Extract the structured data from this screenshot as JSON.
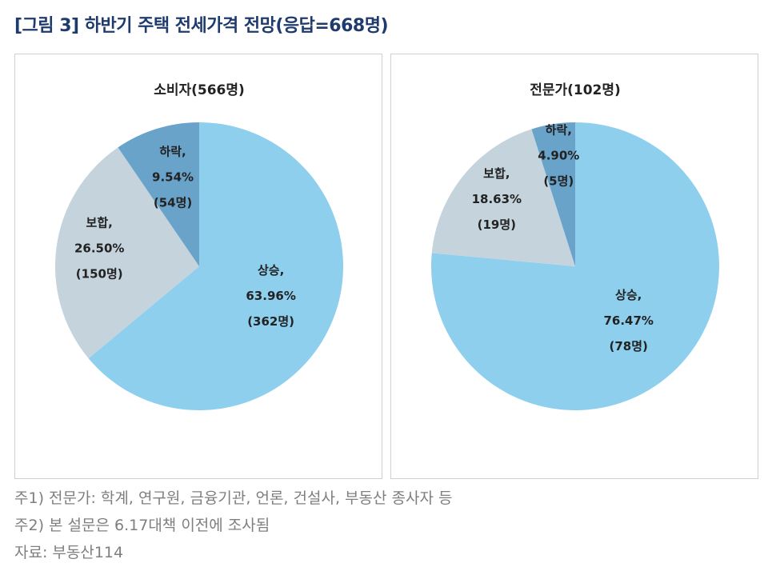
{
  "title": "[그림 3] 하반기 주택 전세가격 전망(응답=668명)",
  "chart_data": [
    {
      "type": "pie",
      "title": "소비자(566명)",
      "slices": [
        {
          "label": "상승",
          "percent": 63.96,
          "count": "362명",
          "text": [
            "상승,",
            "63.96%",
            "(362명)"
          ],
          "color": "#8ecfee"
        },
        {
          "label": "보합",
          "percent": 26.5,
          "count": "150명",
          "text": [
            "보합,",
            "26.50%",
            "(150명)"
          ],
          "color": "#c5d3dd"
        },
        {
          "label": "하락",
          "percent": 9.54,
          "count": "54명",
          "text": [
            "하락,",
            "9.54%",
            "(54명)"
          ],
          "color": "#6aa3c9"
        }
      ]
    },
    {
      "type": "pie",
      "title": "전문가(102명)",
      "slices": [
        {
          "label": "상승",
          "percent": 76.47,
          "count": "78명",
          "text": [
            "상승,",
            "76.47%",
            "(78명)"
          ],
          "color": "#8ecfee"
        },
        {
          "label": "보합",
          "percent": 18.63,
          "count": "19명",
          "text": [
            "보합,",
            "18.63%",
            "(19명)"
          ],
          "color": "#c5d3dd"
        },
        {
          "label": "하락",
          "percent": 4.9,
          "count": "5명",
          "text": [
            "하락,",
            "4.90%",
            "(5명)"
          ],
          "color": "#6aa3c9"
        }
      ]
    }
  ],
  "notes": [
    "주1) 전문가: 학계, 연구원, 금융기관, 언론, 건설사, 부동산 종사자 등",
    "주2) 본 설문은 6.17대책 이전에 조사됨",
    "자료: 부동산114"
  ]
}
